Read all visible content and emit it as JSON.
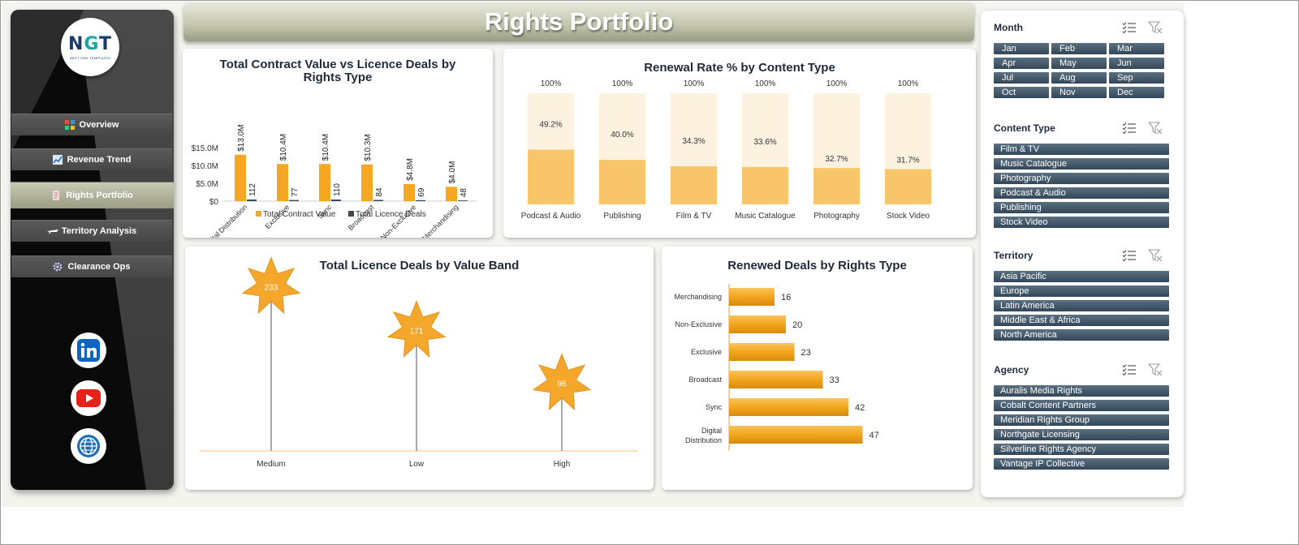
{
  "title": "Rights Portfolio",
  "logo": {
    "mark_left": "N",
    "mark_mid": "G",
    "mark_right": "T",
    "tagline": "NEXT GEN TEMPLATES"
  },
  "nav": [
    {
      "label": "Overview",
      "icon": "dashboard-icon"
    },
    {
      "label": "Revenue Trend",
      "icon": "line-chart-icon"
    },
    {
      "label": "Rights Portfolio",
      "icon": "document-icon",
      "active": true
    },
    {
      "label": "Territory Analysis",
      "icon": "plane-icon"
    },
    {
      "label": "Clearance Ops",
      "icon": "gear-icon"
    }
  ],
  "social": [
    "linkedin-icon",
    "youtube-icon",
    "globe-icon"
  ],
  "colors": {
    "accent": "#F5A623",
    "dark_series": "#34495E",
    "renewal_bg": "#FDF2E0",
    "renewal_fill": "#F8C56A"
  },
  "chart_data": [
    {
      "type": "bar",
      "title": "Total Contract Value vs Licence Deals by Rights Type",
      "categories": [
        "Digital Distribution",
        "Exclusive",
        "Sync",
        "Broadcast",
        "Non-Exclusive",
        "Merchandising"
      ],
      "series": [
        {
          "name": "Total Contract Value",
          "values": [
            13.0,
            10.4,
            10.4,
            10.3,
            4.8,
            4.0
          ],
          "labels": [
            "$13.0M",
            "$10.4M",
            "$10.4M",
            "$10.3M",
            "$4.8M",
            "$4.0M"
          ]
        },
        {
          "name": "Total Licence Deals",
          "values": [
            112,
            77,
            110,
            84,
            69,
            48
          ]
        }
      ],
      "y_ticks": [
        "$0",
        "$5.0M",
        "$10.0M",
        "$15.0M"
      ],
      "ylim": [
        0,
        15
      ],
      "legend": "bottom"
    },
    {
      "type": "bar",
      "title": "Renewal Rate % by Content Type",
      "categories": [
        "Podcast & Audio",
        "Publishing",
        "Film & TV",
        "Music Catalogue",
        "Photography",
        "Stock Video"
      ],
      "values": [
        49.2,
        40.0,
        34.3,
        33.6,
        32.7,
        31.7
      ],
      "value_labels": [
        "49.2%",
        "40.0%",
        "34.3%",
        "33.6%",
        "32.7%",
        "31.7%"
      ],
      "total_labels": [
        "100%",
        "100%",
        "100%",
        "100%",
        "100%",
        "100%"
      ],
      "ylim": [
        0,
        100
      ]
    },
    {
      "type": "scatter",
      "title": "Total Licence Deals by Value Band",
      "categories": [
        "Medium",
        "Low",
        "High"
      ],
      "values": [
        233,
        171,
        96
      ],
      "ylim": [
        0,
        260
      ]
    },
    {
      "type": "bar",
      "title": "Renewed Deals by Rights Type",
      "orientation": "horizontal",
      "categories": [
        "Merchandising",
        "Non-Exclusive",
        "Exclusive",
        "Broadcast",
        "Sync",
        "Digital Distribution"
      ],
      "values": [
        16,
        20,
        23,
        33,
        42,
        47
      ],
      "xlim": [
        0,
        60
      ]
    }
  ],
  "slicers": [
    {
      "title": "Month",
      "items": [
        "Jan",
        "Feb",
        "Mar",
        "Apr",
        "May",
        "Jun",
        "Jul",
        "Aug",
        "Sep",
        "Oct",
        "Nov",
        "Dec"
      ]
    },
    {
      "title": "Content Type",
      "items": [
        "Film & TV",
        "Music Catalogue",
        "Photography",
        "Podcast & Audio",
        "Publishing",
        "Stock Video"
      ]
    },
    {
      "title": "Territory",
      "items": [
        "Asia Pacific",
        "Europe",
        "Latin America",
        "Middle East & Africa",
        "North America"
      ]
    },
    {
      "title": "Agency",
      "items": [
        "Auralis Media Rights",
        "Cobalt Content Partners",
        "Meridian Rights Group",
        "Northgate Licensing",
        "Silverline Rights Agency",
        "Vantage IP Collective"
      ]
    }
  ]
}
